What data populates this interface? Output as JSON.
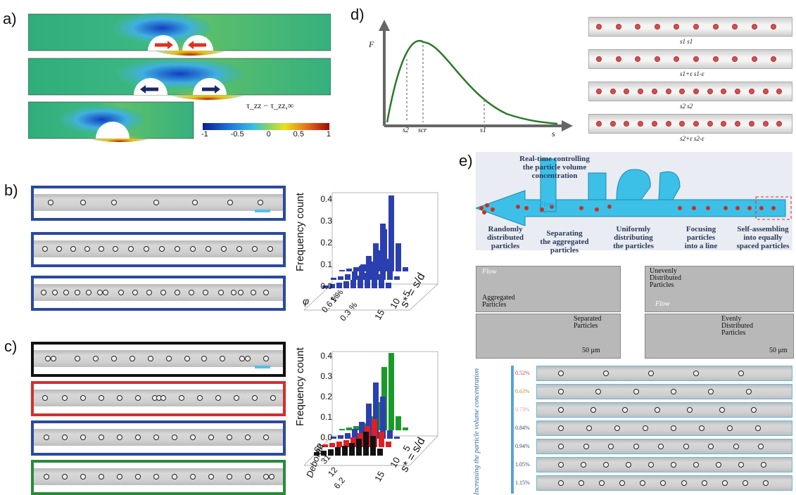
{
  "panels": {
    "a": "a)",
    "b": "b)",
    "c": "c)",
    "d": "d)",
    "e": "e)"
  },
  "a": {
    "colorbar_label": "τ_zz − τ_zz,∞",
    "ticks": [
      "-1",
      "-0.5",
      "0",
      "0.5",
      "1"
    ]
  },
  "b": {
    "frames": [
      "#2a4aa0",
      "#2a4aa0",
      "#2a4aa0"
    ],
    "chart_data": {
      "type": "bar",
      "zlabel": "Frequency count",
      "xlabel": "s* = s/d",
      "ylabel": "φ",
      "z_ticks": [
        "0.0",
        "0.1",
        "0.2",
        "0.3",
        "0.4"
      ],
      "x_ticks": [
        "5",
        "10",
        "15"
      ],
      "series": [
        {
          "name": "1 %"
        },
        {
          "name": "0.6 %"
        },
        {
          "name": "0.3 %"
        }
      ]
    }
  },
  "c": {
    "frames": [
      "#111111",
      "#d03030",
      "#2a4aa0",
      "#2a8a3a"
    ],
    "chart_data": {
      "type": "bar",
      "zlabel": "Frequency count",
      "xlabel": "s* = s/d",
      "ylabel": "Deborah",
      "z_ticks": [
        "0.0",
        "0.1",
        "0.2",
        "0.3",
        "0.4"
      ],
      "x_ticks": [
        "5",
        "10",
        "15"
      ],
      "series": [
        {
          "name": "62"
        },
        {
          "name": "31"
        },
        {
          "name": "12"
        },
        {
          "name": "6.2"
        }
      ]
    }
  },
  "d": {
    "chart_data": {
      "type": "line",
      "ylabel": "F",
      "xlabel": "s",
      "x_markers": [
        "s2",
        "scr",
        "s1"
      ]
    },
    "tube_labels": [
      [
        "s1",
        "s1"
      ],
      [
        "s1+ε",
        "s1-ε"
      ],
      [
        "s2",
        "s2"
      ],
      [
        "s2+ε",
        "s2-ε"
      ]
    ]
  },
  "e": {
    "top_labels": [
      {
        "text": "Real-time controlling\nthe particle volume\nconcentration"
      },
      {
        "text": "Randomly\ndistributed\nparticles"
      },
      {
        "text": "Separating\nthe aggregated\nparticles"
      },
      {
        "text": "Uniformly\ndistributing\nthe particles"
      },
      {
        "text": "Focusing\nparticles\ninto a line"
      },
      {
        "text": "Self-assembling\ninto equally\nspaced particles"
      }
    ],
    "flow": "Flow",
    "micro": {
      "aggregated": "Aggregated\nParticles",
      "separated": "Separated\nParticles",
      "uneven": "Unevenly\nDistributed\nParticles",
      "even": "Evenly\nDistributed\nParticles",
      "scale": "50 μm"
    },
    "side_label": "Increasing the particle volume concentration",
    "concentrations": [
      "0.52%",
      "0.63%",
      "0.73%",
      "0.84%",
      "0.94%",
      "1.05%",
      "1.15%"
    ],
    "conc_colors": [
      "#c04040",
      "#d08a20",
      "#d0a0a0",
      "#334466",
      "#334466",
      "#334466",
      "#334466"
    ]
  }
}
